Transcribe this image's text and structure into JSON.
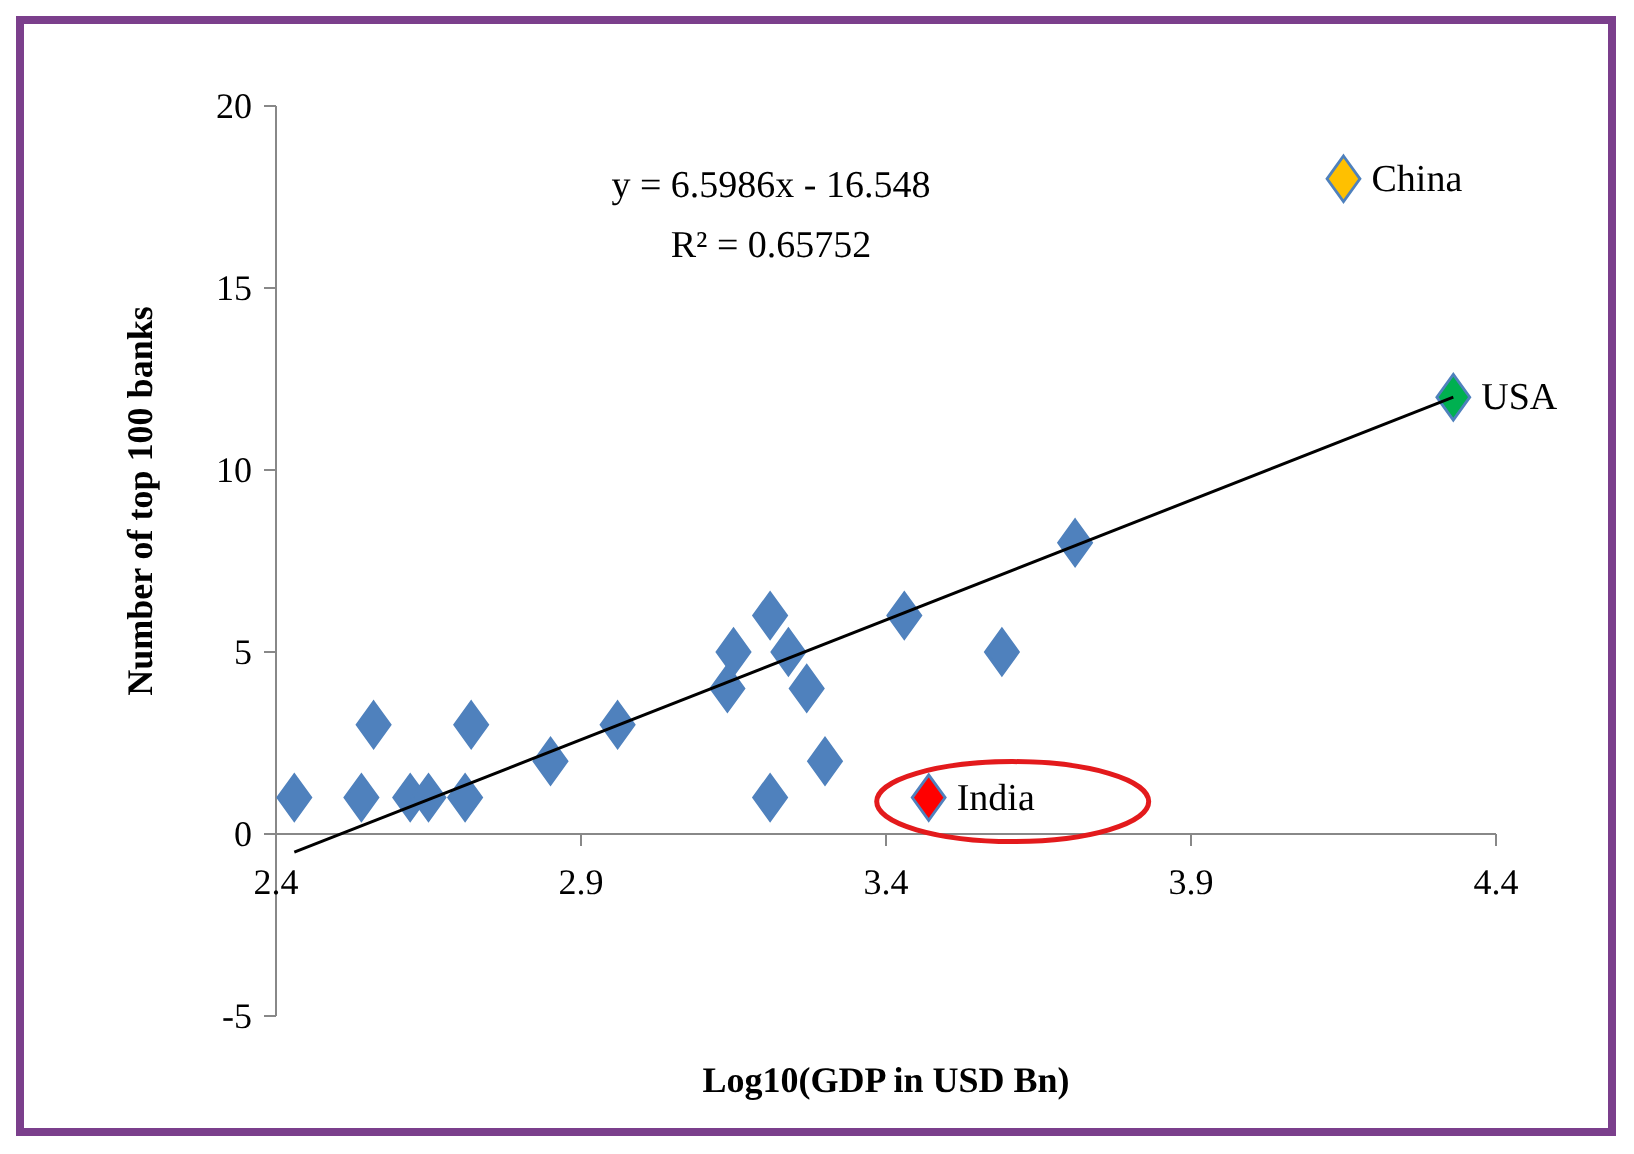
{
  "chart_data": {
    "type": "scatter",
    "xlabel": "Log10(GDP in USD Bn)",
    "ylabel": "Number of top 100 banks",
    "xlim": [
      2.4,
      4.4
    ],
    "ylim": [
      -5,
      20
    ],
    "xticks": [
      2.4,
      2.9,
      3.4,
      3.9,
      4.4
    ],
    "yticks": [
      -5,
      0,
      5,
      10,
      15,
      20
    ],
    "grid": false,
    "marker": "diamond",
    "annotations": [
      "y = 6.5986x - 16.548",
      "R² = 0.65752"
    ],
    "series": [
      {
        "color": "#4f81bd",
        "x": [
          2.43,
          2.54,
          2.56,
          2.62,
          2.65,
          2.71,
          2.72,
          2.85,
          2.96,
          3.14,
          3.15,
          3.21,
          3.21,
          3.24,
          3.27,
          3.3,
          3.43,
          3.59,
          3.71
        ],
        "values": [
          1,
          1,
          3,
          1,
          1,
          1,
          3,
          2,
          3,
          4,
          5,
          6,
          1,
          5,
          4,
          2,
          6,
          5,
          8
        ]
      },
      {
        "name": "India",
        "color": "#ff0000",
        "x": [
          3.47
        ],
        "values": [
          1
        ]
      },
      {
        "name": "China",
        "color": "#ffc000",
        "x": [
          4.15
        ],
        "values": [
          18
        ]
      },
      {
        "name": "USA",
        "color": "#00b050",
        "x": [
          4.33
        ],
        "values": [
          12
        ]
      },
      {
        "type": "line",
        "color": "#000000",
        "x": [
          2.43,
          4.33
        ],
        "values": [
          -0.5,
          12.0
        ],
        "marker": "none"
      }
    ]
  }
}
